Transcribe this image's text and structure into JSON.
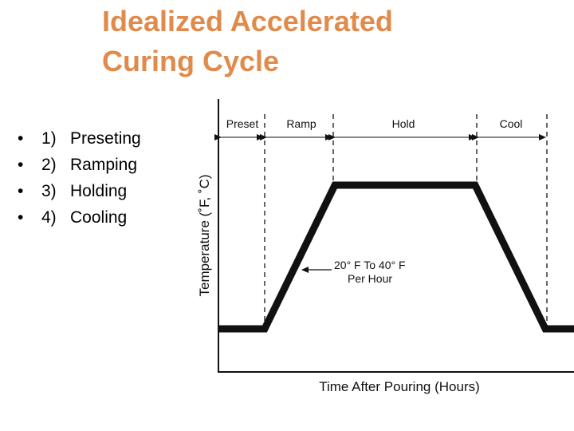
{
  "title": {
    "line1": "Idealized Accelerated",
    "line2": "Curing Cycle",
    "color": "#E08A4B"
  },
  "steps": [
    {
      "bullet": "•",
      "number": "1)",
      "label": "Preseting"
    },
    {
      "bullet": "•",
      "number": "2)",
      "label": "Ramping"
    },
    {
      "bullet": "•",
      "number": "3)",
      "label": "Holding"
    },
    {
      "bullet": "•",
      "number": "4)",
      "label": "Cooling"
    }
  ],
  "diagram": {
    "phases": [
      "Preset",
      "Ramp",
      "Hold",
      "Cool"
    ],
    "annotation_line1": "20° F To 40° F",
    "annotation_line2": "Per Hour",
    "x_axis_label": "Time After Pouring (Hours)",
    "y_axis_label": "Temperature (˚F, ˚C)"
  }
}
